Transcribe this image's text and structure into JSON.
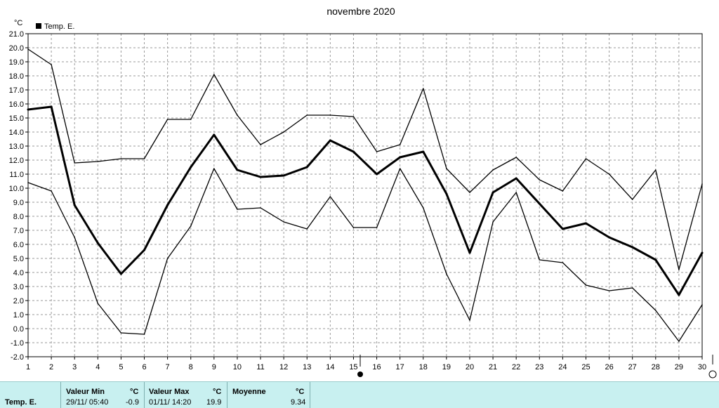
{
  "chart_data": {
    "type": "line",
    "title": "novembre 2020",
    "ylabel": "°C",
    "xlabel": "",
    "ylim": [
      -2.0,
      21.0
    ],
    "xlim": [
      1,
      30
    ],
    "ytick_step": 1.0,
    "grid": true,
    "legend": {
      "position": "top-left",
      "entries": [
        "Temp. E."
      ]
    },
    "x": [
      1,
      2,
      3,
      4,
      5,
      6,
      7,
      8,
      9,
      10,
      11,
      12,
      13,
      14,
      15,
      16,
      17,
      18,
      19,
      20,
      21,
      22,
      23,
      24,
      25,
      26,
      27,
      28,
      29,
      30
    ],
    "series": [
      {
        "name": "",
        "role": "max",
        "values": [
          19.9,
          18.8,
          11.8,
          11.9,
          12.1,
          12.1,
          14.9,
          14.9,
          18.1,
          15.2,
          13.1,
          14.0,
          15.2,
          15.2,
          15.1,
          12.6,
          13.1,
          17.1,
          11.4,
          9.7,
          11.3,
          12.2,
          10.6,
          9.8,
          12.1,
          11.0,
          9.2,
          11.3,
          4.2,
          10.3
        ]
      },
      {
        "name": "Temp. E.",
        "role": "mean",
        "values": [
          15.6,
          15.8,
          8.8,
          6.1,
          3.9,
          5.6,
          8.8,
          11.5,
          13.8,
          11.3,
          10.8,
          10.9,
          11.5,
          13.4,
          12.6,
          11.0,
          12.2,
          12.6,
          9.6,
          5.4,
          9.7,
          10.7,
          8.9,
          7.1,
          7.5,
          6.5,
          5.8,
          4.9,
          2.4,
          5.4
        ]
      },
      {
        "name": "",
        "role": "min",
        "values": [
          10.4,
          9.8,
          6.5,
          1.8,
          -0.3,
          -0.4,
          5.0,
          7.3,
          11.4,
          8.5,
          8.6,
          7.6,
          7.1,
          9.4,
          7.2,
          7.2,
          11.4,
          8.6,
          3.9,
          0.6,
          7.6,
          9.7,
          4.9,
          4.7,
          3.1,
          2.7,
          2.9,
          1.3,
          -0.9,
          1.7
        ]
      }
    ]
  },
  "stats": {
    "series_label": "Temp. E.",
    "min_header": "Valeur Min",
    "min_unit": "°C",
    "min_datetime": "29/11/  05:40",
    "min_value": "-0.9",
    "max_header": "Valeur Max",
    "max_unit": "°C",
    "max_datetime": "01/11/  14:20",
    "max_value": "19.9",
    "mean_header": "Moyenne",
    "mean_unit": "°C",
    "mean_value": "9.34"
  }
}
